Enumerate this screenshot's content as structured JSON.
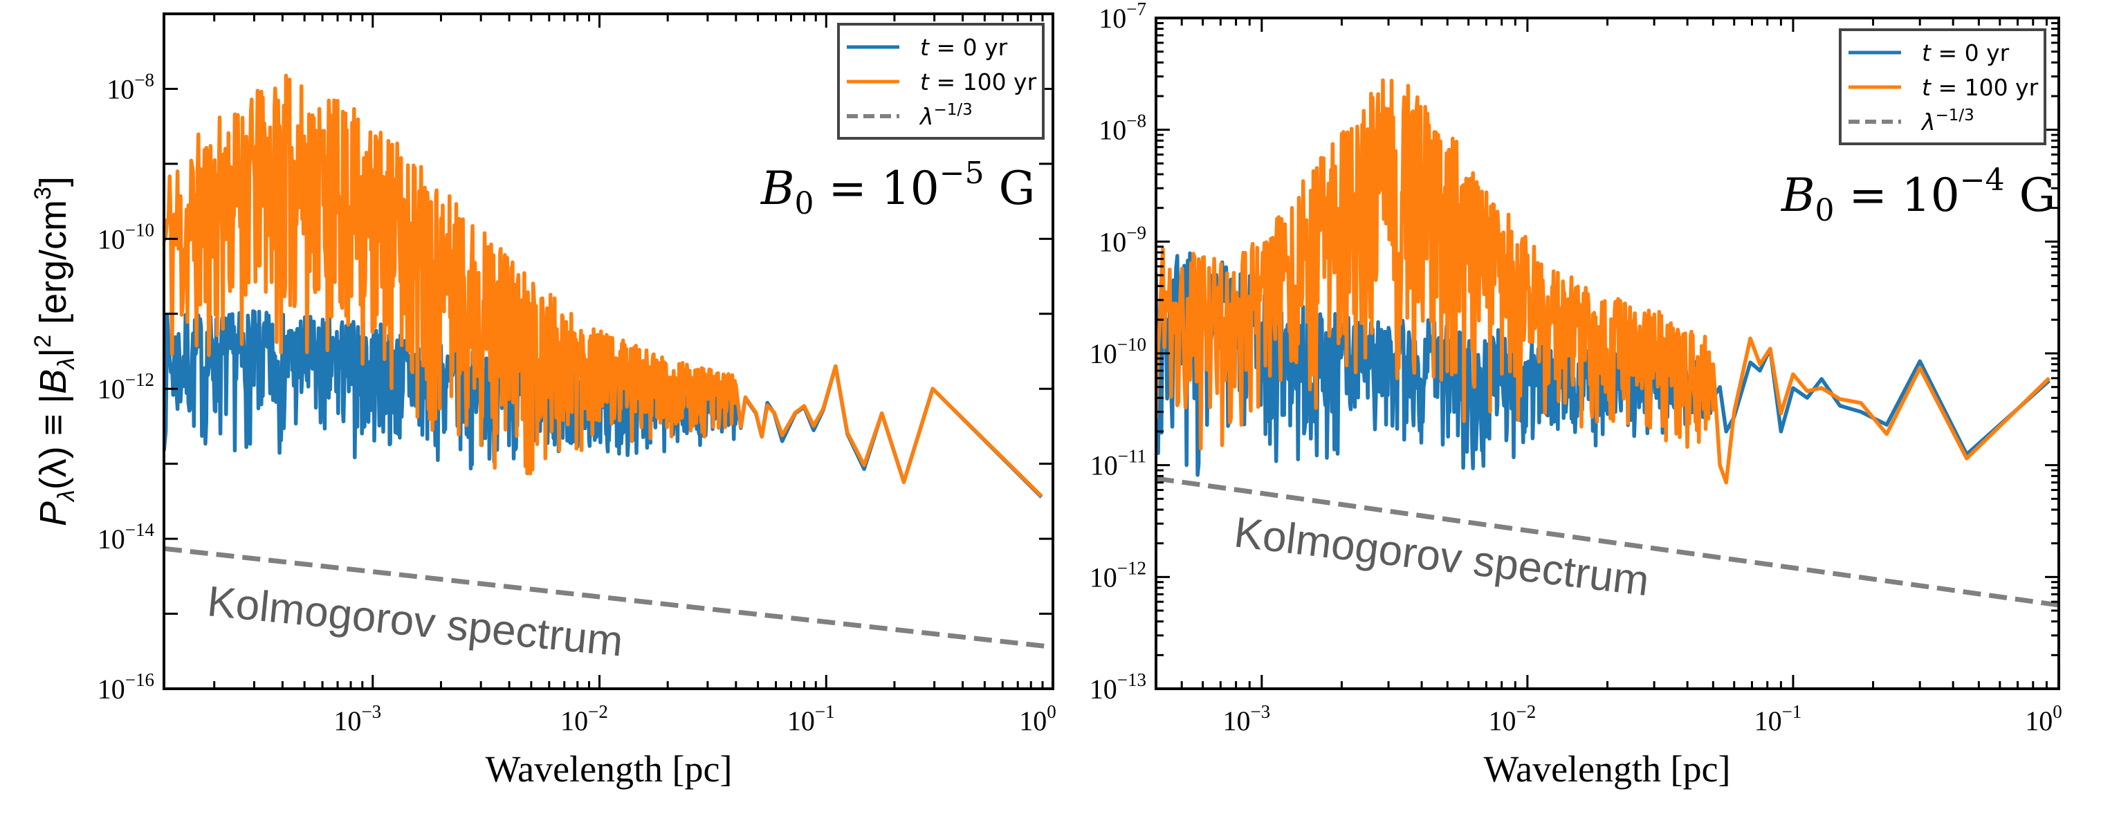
{
  "figure": {
    "ylabel": {
      "main": "P",
      "sub": "λ",
      "mid": "(λ) ≡ |",
      "mid_B": "B",
      "mid_sub": "λ",
      "mid_close": "|",
      "mid_sq": "2",
      "units": " [erg/cm",
      "units_exp": "3",
      "units_close": "]"
    }
  },
  "chart_data": [
    {
      "type": "line",
      "title": "",
      "xlabel": "Wavelength [pc]",
      "ylabel": "P_λ(λ) ≡ |B_λ|² [erg/cm³]",
      "xscale": "log",
      "yscale": "log",
      "xlim": [
        0.00012,
        1.0
      ],
      "ylim": [
        1e-16,
        1e-07
      ],
      "x_ticks": [
        {
          "value": 0.001,
          "base": "10",
          "exp": "−3"
        },
        {
          "value": 0.01,
          "base": "10",
          "exp": "−2"
        },
        {
          "value": 0.1,
          "base": "10",
          "exp": "−1"
        },
        {
          "value": 1.0,
          "base": "10",
          "exp": "0"
        }
      ],
      "y_ticks": [
        {
          "value": 1e-08,
          "base": "10",
          "exp": "−8"
        },
        {
          "value": 1e-10,
          "base": "10",
          "exp": "−10"
        },
        {
          "value": 1e-12,
          "base": "10",
          "exp": "−12"
        },
        {
          "value": 1e-14,
          "base": "10",
          "exp": "−14"
        },
        {
          "value": 1e-16,
          "base": "10",
          "exp": "−16"
        }
      ],
      "grid": false,
      "legend": {
        "placement": "top-right",
        "entries": [
          {
            "label_var": "t",
            "label_rest": " = 0 yr",
            "color": "#1f77b4",
            "style": "solid"
          },
          {
            "label_var": "t",
            "label_rest": " = 100 yr",
            "color": "#ff7f0e",
            "style": "solid"
          },
          {
            "label_var": "λ",
            "label_rest": "",
            "label_exp": "−1/3",
            "color": "#808080",
            "style": "dashed"
          }
        ]
      },
      "annotation": {
        "var": "B",
        "sub": "0",
        "eq": " = 10",
        "exp": "−5",
        "unit": " G"
      },
      "kolmogorov_label": "Kolmogorov spectrum",
      "series": [
        {
          "name": "t = 0 yr",
          "color": "#1f77b4",
          "noisy_band": {
            "x_range": [
              0.00012,
              0.04
            ],
            "upper_envelope": [
              [
                0.00012,
                1e-11
              ],
              [
                0.0003,
                1.1e-11
              ],
              [
                0.001,
                8e-12
              ],
              [
                0.003,
                3e-12
              ],
              [
                0.01,
                1.5e-12
              ],
              [
                0.04,
                8e-13
              ]
            ],
            "lower_envelope": [
              [
                0.00012,
                1e-13
              ],
              [
                0.0003,
                1.2e-13
              ],
              [
                0.001,
                1e-13
              ],
              [
                0.003,
                8e-14
              ],
              [
                0.01,
                1e-13
              ],
              [
                0.04,
                2e-13
              ]
            ],
            "n_samples": 900,
            "seed": 7
          },
          "tail": {
            "x": [
              0.04,
              0.042,
              0.044,
              0.049,
              0.052,
              0.055,
              0.059,
              0.064,
              0.073,
              0.08,
              0.088,
              0.097,
              0.11,
              0.124,
              0.147,
              0.176,
              0.22,
              0.295,
              0.89
            ],
            "y": [
              1e-12,
              3e-13,
              7.5e-13,
              4.7e-13,
              2.3e-13,
              6.5e-13,
              4.7e-13,
              2e-13,
              4.7e-13,
              5.7e-13,
              2.8e-13,
              5.2e-13,
              2e-12,
              2.5e-13,
              8.5e-14,
              4.7e-13,
              5.7e-14,
              1e-12,
              3.6e-14
            ]
          }
        },
        {
          "name": "t = 100 yr",
          "color": "#ff7f0e",
          "noisy_band": {
            "x_range": [
              0.00012,
              0.04
            ],
            "upper_envelope": [
              [
                0.00012,
                1.2e-09
              ],
              [
                0.0002,
                4e-09
              ],
              [
                0.0004,
                1.6e-08
              ],
              [
                0.0008,
                6e-09
              ],
              [
                0.0015,
                1.5e-09
              ],
              [
                0.003,
                1.5e-10
              ],
              [
                0.006,
                2e-11
              ],
              [
                0.01,
                6e-12
              ],
              [
                0.02,
                2.5e-12
              ],
              [
                0.04,
                1.5e-12
              ]
            ],
            "lower_envelope": [
              [
                0.00012,
                3e-13
              ],
              [
                0.0003,
                3e-12
              ],
              [
                0.0006,
                2e-12
              ],
              [
                0.001,
                6e-13
              ],
              [
                0.002,
                1.5e-13
              ],
              [
                0.005,
                5e-14
              ],
              [
                0.01,
                1.5e-13
              ],
              [
                0.04,
                2.5e-13
              ]
            ],
            "n_samples": 900,
            "seed": 11
          },
          "tail": {
            "x": [
              0.04,
              0.042,
              0.044,
              0.049,
              0.052,
              0.055,
              0.059,
              0.064,
              0.073,
              0.08,
              0.088,
              0.097,
              0.11,
              0.124,
              0.147,
              0.176,
              0.22,
              0.295,
              0.89
            ],
            "y": [
              1.1e-12,
              3.1e-13,
              7.7e-13,
              4.8e-13,
              2.3e-13,
              6e-13,
              4.8e-13,
              2.4e-13,
              4.8e-13,
              5.9e-13,
              3.2e-13,
              5.4e-13,
              2e-12,
              2.6e-13,
              9.6e-14,
              4.7e-13,
              5.7e-14,
              1e-12,
              3.7e-14
            ]
          }
        },
        {
          "name": "λ^(−1/3)",
          "color": "#808080",
          "style": "dashed",
          "x": [
            0.00012,
            1.0
          ],
          "y": [
            7.4e-15,
            3.6e-16
          ]
        }
      ]
    },
    {
      "type": "line",
      "title": "",
      "xlabel": "Wavelength [pc]",
      "ylabel": "",
      "xscale": "log",
      "yscale": "log",
      "xlim": [
        0.0004,
        1.0
      ],
      "ylim": [
        1e-13,
        1e-07
      ],
      "x_ticks": [
        {
          "value": 0.001,
          "base": "10",
          "exp": "−3"
        },
        {
          "value": 0.01,
          "base": "10",
          "exp": "−2"
        },
        {
          "value": 0.1,
          "base": "10",
          "exp": "−1"
        },
        {
          "value": 1.0,
          "base": "10",
          "exp": "0"
        }
      ],
      "y_ticks": [
        {
          "value": 1e-07,
          "base": "10",
          "exp": "−7"
        },
        {
          "value": 1e-08,
          "base": "10",
          "exp": "−8"
        },
        {
          "value": 1e-09,
          "base": "10",
          "exp": "−9"
        },
        {
          "value": 1e-10,
          "base": "10",
          "exp": "−10"
        },
        {
          "value": 1e-11,
          "base": "10",
          "exp": "−11"
        },
        {
          "value": 1e-12,
          "base": "10",
          "exp": "−12"
        },
        {
          "value": 1e-13,
          "base": "10",
          "exp": "−13"
        }
      ],
      "grid": false,
      "legend": {
        "placement": "top-right",
        "entries": [
          {
            "label_var": "t",
            "label_rest": " = 0 yr",
            "color": "#1f77b4",
            "style": "solid"
          },
          {
            "label_var": "t",
            "label_rest": " = 100 yr",
            "color": "#ff7f0e",
            "style": "solid"
          },
          {
            "label_var": "λ",
            "label_rest": "",
            "label_exp": "−1/3",
            "color": "#808080",
            "style": "dashed"
          }
        ]
      },
      "annotation": {
        "var": "B",
        "sub": "0",
        "eq": " = 10",
        "exp": "−4",
        "unit": " G"
      },
      "kolmogorov_label": "Kolmogorov spectrum",
      "series": [
        {
          "name": "t = 0 yr",
          "color": "#1f77b4",
          "noisy_band": {
            "x_range": [
              0.0004,
              0.05
            ],
            "upper_envelope": [
              [
                0.0004,
                1.3e-09
              ],
              [
                0.0008,
                6e-10
              ],
              [
                0.0015,
                2.5e-10
              ],
              [
                0.003,
                2e-10
              ],
              [
                0.006,
                2e-10
              ],
              [
                0.012,
                1.3e-10
              ],
              [
                0.025,
                1e-10
              ],
              [
                0.05,
                8e-11
              ]
            ],
            "lower_envelope": [
              [
                0.0004,
                5e-12
              ],
              [
                0.0008,
                1e-11
              ],
              [
                0.0015,
                8e-12
              ],
              [
                0.003,
                1.2e-11
              ],
              [
                0.006,
                7e-12
              ],
              [
                0.012,
                1.2e-11
              ],
              [
                0.025,
                1.5e-11
              ],
              [
                0.05,
                2.5e-11
              ]
            ],
            "n_samples": 700,
            "seed": 3
          },
          "tail": {
            "x": [
              0.05,
              0.053,
              0.056,
              0.06,
              0.069,
              0.075,
              0.082,
              0.09,
              0.1,
              0.113,
              0.128,
              0.15,
              0.18,
              0.225,
              0.3,
              0.45,
              0.92
            ],
            "y": [
              4e-11,
              5e-11,
              2e-11,
              2.7e-11,
              8.3e-11,
              7e-11,
              1.1e-10,
              2e-11,
              4.9e-11,
              4e-11,
              5.9e-11,
              3.4e-11,
              3e-11,
              2.3e-11,
              8.5e-11,
              1.25e-11,
              5.7e-11
            ]
          }
        },
        {
          "name": "t = 100 yr",
          "color": "#ff7f0e",
          "noisy_band": {
            "x_range": [
              0.0004,
              0.05
            ],
            "upper_envelope": [
              [
                0.0004,
                9e-10
              ],
              [
                0.0008,
                8e-10
              ],
              [
                0.0012,
                2e-09
              ],
              [
                0.002,
                1e-08
              ],
              [
                0.003,
                4e-08
              ],
              [
                0.005,
                1e-08
              ],
              [
                0.008,
                2.5e-09
              ],
              [
                0.012,
                6e-10
              ],
              [
                0.02,
                3.5e-10
              ],
              [
                0.03,
                2.5e-10
              ],
              [
                0.05,
                1.3e-10
              ]
            ],
            "lower_envelope": [
              [
                0.0004,
                1e-11
              ],
              [
                0.0008,
                1.5e-11
              ],
              [
                0.0015,
                3e-11
              ],
              [
                0.003,
                4e-11
              ],
              [
                0.006,
                2e-11
              ],
              [
                0.012,
                2e-11
              ],
              [
                0.025,
                1.5e-11
              ],
              [
                0.05,
                1.2e-11
              ]
            ],
            "n_samples": 700,
            "seed": 19
          },
          "tail": {
            "x": [
              0.05,
              0.053,
              0.056,
              0.06,
              0.069,
              0.075,
              0.082,
              0.09,
              0.1,
              0.113,
              0.128,
              0.15,
              0.18,
              0.225,
              0.3,
              0.45,
              0.92
            ],
            "y": [
              8e-11,
              1e-11,
              7e-12,
              3e-11,
              1.36e-10,
              8e-11,
              1.1e-10,
              2.9e-11,
              6.5e-11,
              4.6e-11,
              4.9e-11,
              3.9e-11,
              3.6e-11,
              1.9e-11,
              7.4e-11,
              1.15e-11,
              6e-11
            ]
          }
        },
        {
          "name": "λ^(−1/3)",
          "color": "#808080",
          "style": "dashed",
          "x": [
            0.0004,
            1.0
          ],
          "y": [
            7.6e-12,
            5.6e-13
          ]
        }
      ]
    }
  ]
}
